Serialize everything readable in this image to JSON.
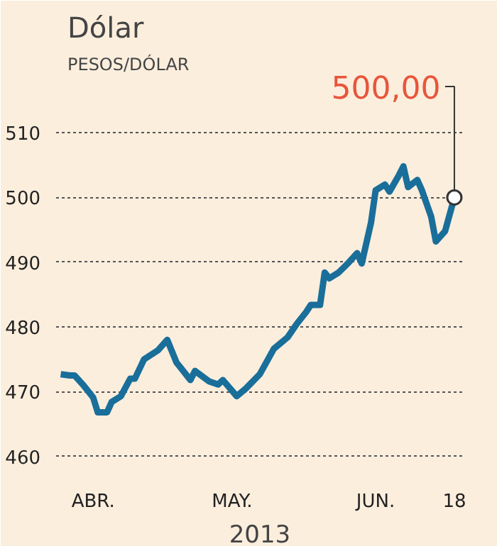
{
  "chart_data": {
    "type": "line",
    "title": "Dólar",
    "ylabel": "PESOS/DÓLAR",
    "xlabel": "2013",
    "x": [
      "2013-03-25",
      "2013-03-27",
      "2013-03-28",
      "2013-03-30",
      "2013-04-01",
      "2013-04-02",
      "2013-04-04",
      "2013-04-05",
      "2013-04-07",
      "2013-04-09",
      "2013-04-10",
      "2013-04-12",
      "2013-04-15",
      "2013-04-17",
      "2013-04-19",
      "2013-04-22",
      "2013-04-23",
      "2013-04-26",
      "2013-04-28",
      "2013-04-29",
      "2013-05-02",
      "2013-05-04",
      "2013-05-07",
      "2013-05-10",
      "2013-05-13",
      "2013-05-15",
      "2013-05-17",
      "2013-05-18",
      "2013-05-20",
      "2013-05-21",
      "2013-05-22",
      "2013-05-24",
      "2013-05-26",
      "2013-05-28",
      "2013-05-29",
      "2013-05-31",
      "2013-06-01",
      "2013-06-03",
      "2013-06-04",
      "2013-06-06",
      "2013-06-07",
      "2013-06-08",
      "2013-06-10",
      "2013-06-11",
      "2013-06-13",
      "2013-06-14",
      "2013-06-16",
      "2013-06-18"
    ],
    "series": [
      {
        "color": "#1a6e9a",
        "values": [
          472.7,
          472.5,
          472.5,
          470.9,
          469.1,
          466.8,
          466.8,
          468.4,
          469.3,
          472.0,
          472.0,
          475.0,
          476.4,
          478.0,
          474.5,
          471.8,
          473.2,
          471.6,
          471.1,
          471.8,
          469.3,
          470.5,
          472.7,
          476.6,
          478.4,
          480.5,
          482.3,
          483.4,
          483.4,
          488.4,
          487.5,
          488.4,
          489.8,
          491.4,
          489.8,
          496.1,
          501.1,
          502.0,
          500.9,
          503.4,
          504.8,
          501.6,
          502.7,
          501.1,
          497.0,
          493.2,
          494.8,
          500.0
        ]
      }
    ],
    "xlim": [
      "2013-03-24",
      "2013-06-20"
    ],
    "xticks": [
      {
        "value": "2013-04-01",
        "label": "ABR."
      },
      {
        "value": "2013-05-01",
        "label": "MAY."
      },
      {
        "value": "2013-06-01",
        "label": "JUN."
      },
      {
        "value": "2013-06-18",
        "label": "18"
      }
    ],
    "ylim": [
      457,
      519
    ],
    "yticks": [
      460,
      470,
      480,
      490,
      500,
      510
    ],
    "grid": "y",
    "marker": "none",
    "line_style": "solid",
    "annotations": [
      {
        "text": "500,00",
        "x": "2013-06-18",
        "y": 500.0
      }
    ]
  }
}
